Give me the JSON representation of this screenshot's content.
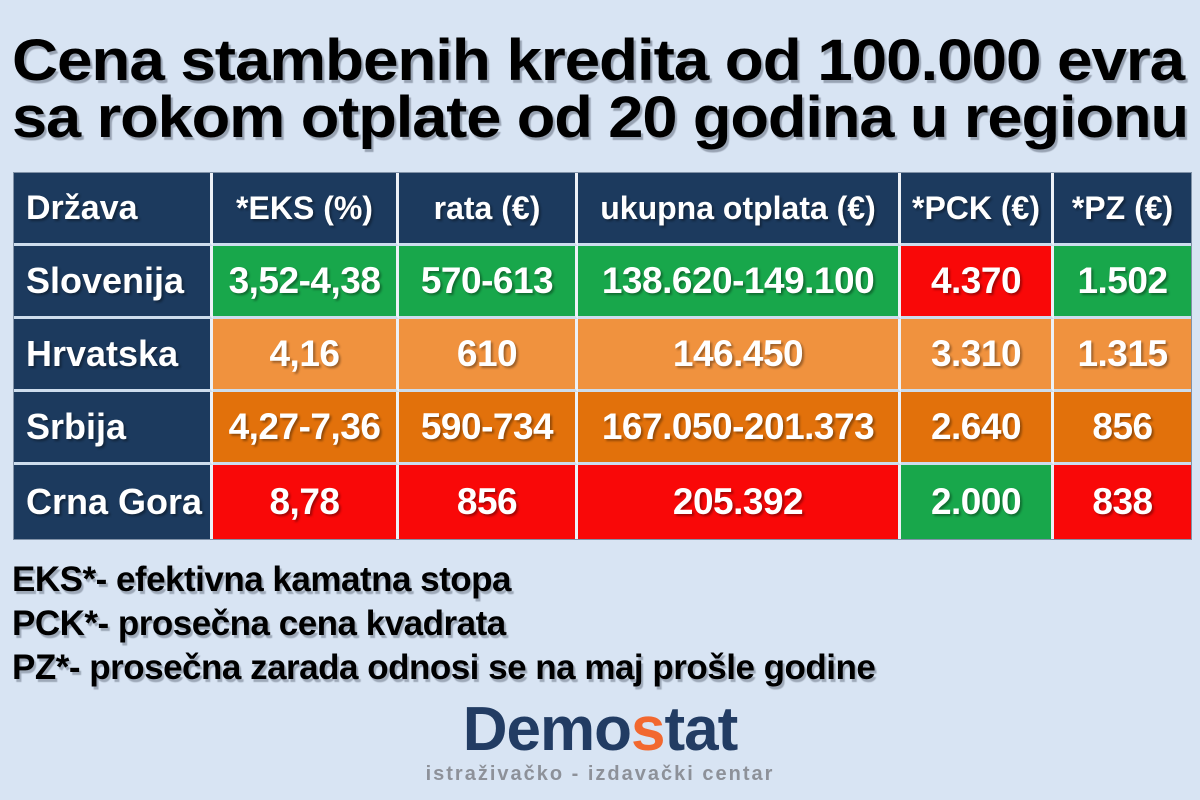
{
  "title": {
    "line1": "Cena stambenih kredita od 100.000 evra",
    "line2": "sa rokom otplate od 20 godina u regionu"
  },
  "table": {
    "headers": [
      "Država",
      "*EKS (%)",
      "rata (€)",
      "ukupna otplata (€)",
      "*PCK (€)",
      "*PZ (€)"
    ],
    "rows": [
      {
        "country": "Slovenija",
        "cells": [
          {
            "text": "3,52-4,38",
            "color": "green"
          },
          {
            "text": "570-613",
            "color": "green"
          },
          {
            "text": "138.620-149.100",
            "color": "green"
          },
          {
            "text": "4.370",
            "color": "red"
          },
          {
            "text": "1.502",
            "color": "green"
          }
        ]
      },
      {
        "country": "Hrvatska",
        "cells": [
          {
            "text": "4,16",
            "color": "orange-light"
          },
          {
            "text": "610",
            "color": "orange-light"
          },
          {
            "text": "146.450",
            "color": "orange-light"
          },
          {
            "text": "3.310",
            "color": "orange-light"
          },
          {
            "text": "1.315",
            "color": "orange-light"
          }
        ]
      },
      {
        "country": "Srbija",
        "cells": [
          {
            "text": "4,27-7,36",
            "color": "orange-dark"
          },
          {
            "text": "590-734",
            "color": "orange-dark"
          },
          {
            "text": "167.050-201.373",
            "color": "orange-dark"
          },
          {
            "text": "2.640",
            "color": "orange-dark"
          },
          {
            "text": "856",
            "color": "orange-dark"
          }
        ]
      },
      {
        "country": "Crna Gora",
        "cells": [
          {
            "text": "8,78",
            "color": "red"
          },
          {
            "text": "856",
            "color": "red"
          },
          {
            "text": "205.392",
            "color": "red"
          },
          {
            "text": "2.000",
            "color": "green"
          },
          {
            "text": "838",
            "color": "red"
          }
        ]
      }
    ]
  },
  "footnotes": [
    "EKS*- efektivna kamatna stopa",
    "PCK*- prosečna cena kvadrata",
    "PZ*- prosečna zarada odnosi se na maj prošle godine"
  ],
  "logo": {
    "part1": "Demo",
    "accent": "s",
    "part2": "tat",
    "subtitle": "istraživačko - izdavački centar"
  },
  "colors": {
    "background": "#d8e4f3",
    "navy": "#1c3a5e",
    "green": "#18a74b",
    "orange_light": "#f0923e",
    "orange_dark": "#e2710b",
    "red": "#f90808",
    "logo_navy": "#223c63",
    "logo_accent": "#f2682f",
    "logo_subtitle_gray": "#8d9199"
  },
  "chart_data": {
    "type": "table",
    "title": "Cena stambenih kredita od 100.000 evra sa rokom otplate od 20 godina u regionu",
    "columns": [
      "Država",
      "*EKS (%)",
      "rata (€)",
      "ukupna otplata (€)",
      "*PCK (€)",
      "*PZ (€)"
    ],
    "rows": [
      [
        "Slovenija",
        "3,52-4,38",
        "570-613",
        "138.620-149.100",
        "4.370",
        "1.502"
      ],
      [
        "Hrvatska",
        "4,16",
        "610",
        "146.450",
        "3.310",
        "1.315"
      ],
      [
        "Srbija",
        "4,27-7,36",
        "590-734",
        "167.050-201.373",
        "2.640",
        "856"
      ],
      [
        "Crna Gora",
        "8,78",
        "856",
        "205.392",
        "2.000",
        "838"
      ]
    ],
    "cell_colors": [
      [
        "green",
        "green",
        "green",
        "red",
        "green"
      ],
      [
        "orange-light",
        "orange-light",
        "orange-light",
        "orange-light",
        "orange-light"
      ],
      [
        "orange-dark",
        "orange-dark",
        "orange-dark",
        "orange-dark",
        "orange-dark"
      ],
      [
        "red",
        "red",
        "red",
        "green",
        "red"
      ]
    ],
    "notes": [
      "EKS*- efektivna kamatna stopa",
      "PCK*- prosečna cena kvadrata",
      "PZ*- prosečna zarada odnosi se na maj prošle godine"
    ]
  }
}
